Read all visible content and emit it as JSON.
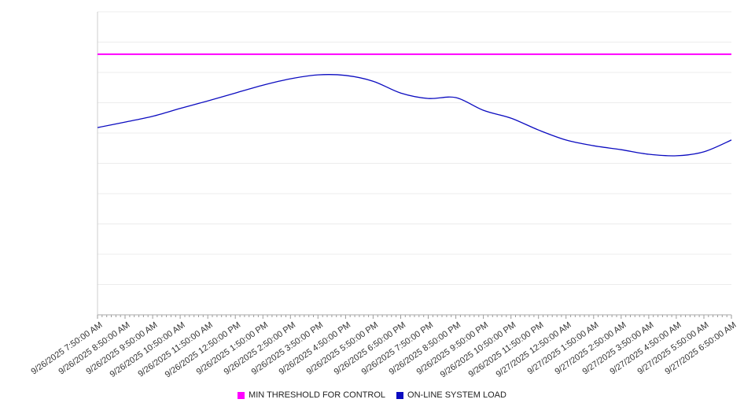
{
  "chart_data": {
    "type": "line",
    "title": "",
    "xlabel": "",
    "ylabel": "",
    "ylim": [
      0,
      100
    ],
    "grid": true,
    "grid_divisions": 10,
    "legend_position": "bottom",
    "categories": [
      "9/26/2025 7:50:00 AM",
      "9/26/2025 8:50:00 AM",
      "9/26/2025 9:50:00 AM",
      "9/26/2025 10:50:00 AM",
      "9/26/2025 11:50:00 AM",
      "9/26/2025 12:50:00 PM",
      "9/26/2025 1:50:00 PM",
      "9/26/2025 2:50:00 PM",
      "9/26/2025 3:50:00 PM",
      "9/26/2025 4:50:00 PM",
      "9/26/2025 5:50:00 PM",
      "9/26/2025 6:50:00 PM",
      "9/26/2025 7:50:00 PM",
      "9/26/2025 8:50:00 PM",
      "9/26/2025 9:50:00 PM",
      "9/26/2025 10:50:00 PM",
      "9/26/2025 11:50:00 PM",
      "9/27/2025 12:50:00 AM",
      "9/27/2025 1:50:00 AM",
      "9/27/2025 2:50:00 AM",
      "9/27/2025 3:50:00 AM",
      "9/27/2025 4:50:00 AM",
      "9/27/2025 5:50:00 AM",
      "9/27/2025 6:50:00 AM"
    ],
    "series": [
      {
        "name": "MIN THRESHOLD FOR CONTROL",
        "color": "#ff00ff",
        "stroke_width": 2,
        "style": "threshold",
        "values": [
          86,
          86,
          86,
          86,
          86,
          86,
          86,
          86,
          86,
          86,
          86,
          86,
          86,
          86,
          86,
          86,
          86,
          86,
          86,
          86,
          86,
          86,
          86,
          86
        ]
      },
      {
        "name": "ON-LINE SYSTEM LOAD",
        "color": "#0b0bc0",
        "stroke_width": 1.3,
        "style": "line",
        "values": [
          61.8,
          63.6,
          65.5,
          68.1,
          70.6,
          73.2,
          75.8,
          77.9,
          79.2,
          79.0,
          77.1,
          73.2,
          71.4,
          71.7,
          67.5,
          64.9,
          61.0,
          57.7,
          55.8,
          54.5,
          53.0,
          52.5,
          53.8,
          57.7
        ]
      }
    ],
    "axis_colors": {
      "grid": "#ececec",
      "x_axis": "#aaaaaa",
      "y_axis": "#cccccc",
      "tick": "#999999"
    }
  }
}
